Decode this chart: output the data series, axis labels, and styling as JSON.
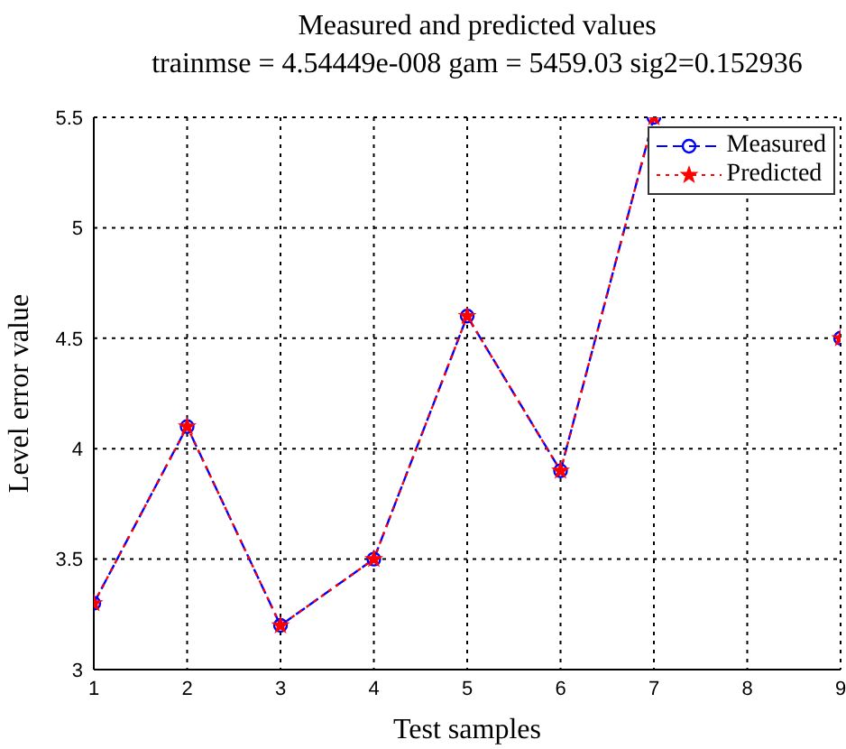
{
  "chart_data": {
    "type": "line",
    "title": "Measured and predicted values",
    "subtitle": "trainmse = 4.54449e-008 gam = 5459.03 sig2=0.152936",
    "xlabel": "Test samples",
    "ylabel": "Level error value",
    "x": [
      1,
      2,
      3,
      4,
      5,
      6,
      7,
      8,
      9
    ],
    "series": [
      {
        "name": "Measured",
        "color": "#0000ff",
        "values": [
          3.3,
          4.1,
          3.2,
          3.5,
          4.6,
          3.9,
          5.5,
          null,
          4.5
        ],
        "marker": "circle",
        "line_style": "dashed"
      },
      {
        "name": "Predicted",
        "color": "#ff0000",
        "values": [
          3.3,
          4.1,
          3.2,
          3.5,
          4.6,
          3.9,
          5.5,
          null,
          4.5
        ],
        "marker": "star",
        "line_style": "dotted"
      }
    ],
    "xlim": [
      1,
      9
    ],
    "xticks": [
      1,
      2,
      3,
      4,
      5,
      6,
      7,
      8,
      9
    ],
    "ylim": [
      3,
      5.5
    ],
    "yticks": [
      3,
      3.5,
      4,
      4.5,
      5,
      5.5
    ],
    "grid": true,
    "legend": "top right"
  }
}
